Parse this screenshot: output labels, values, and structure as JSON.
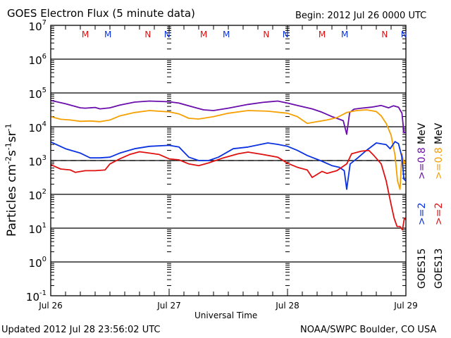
{
  "header": {
    "title": "GOES Electron Flux (5 minute data)",
    "begin": "Begin: 2012 Jul 26 0000 UTC"
  },
  "footer": {
    "updated": "Updated 2012 Jul 28 23:56:02 UTC",
    "credit": "NOAA/SWPC Boulder, CO USA"
  },
  "colors": {
    "goes15_08": "#6a0dad",
    "goes13_08": "#f5a000",
    "goes15_2": "#0a32e0",
    "goes13_2": "#e01010",
    "axis": "#000000"
  },
  "chart_data": {
    "type": "line",
    "title": "GOES Electron Flux (5 minute data)",
    "xlabel": "Universal Time",
    "ylabel": "Particles cm-2 s-1 sr-1",
    "yscale": "log",
    "ylim": [
      0.1,
      10000000
    ],
    "xlim_hours": [
      0,
      72
    ],
    "x_ticks": [
      {
        "hour": 0,
        "label": "Jul 26"
      },
      {
        "hour": 24,
        "label": "Jul 27"
      },
      {
        "hour": 48,
        "label": "Jul 28"
      },
      {
        "hour": 72,
        "label": "Jul 29"
      }
    ],
    "y_ticks": [
      {
        "exp": 7,
        "label": "10",
        "sup": "7"
      },
      {
        "exp": 6,
        "label": "10",
        "sup": "6"
      },
      {
        "exp": 5,
        "label": "10",
        "sup": "5"
      },
      {
        "exp": 4,
        "label": "10",
        "sup": "4"
      },
      {
        "exp": 3,
        "label": "10",
        "sup": "3"
      },
      {
        "exp": 2,
        "label": "10",
        "sup": "2"
      },
      {
        "exp": 1,
        "label": "10",
        "sup": "1"
      },
      {
        "exp": 0,
        "label": "10",
        "sup": "0"
      },
      {
        "exp": -1,
        "label": "10",
        "sup": "-1"
      }
    ],
    "threshold": {
      "value": 1000,
      "style": "dashed"
    },
    "grid": "horizontal decades",
    "markers": [
      {
        "hour": 7.0,
        "label": "M",
        "color": "#e01010"
      },
      {
        "hour": 11.6,
        "label": "M",
        "color": "#0a32e0"
      },
      {
        "hour": 19.7,
        "label": "N",
        "color": "#e01010"
      },
      {
        "hour": 23.6,
        "label": "N",
        "color": "#0a32e0"
      },
      {
        "hour": 31.0,
        "label": "M",
        "color": "#e01010"
      },
      {
        "hour": 35.6,
        "label": "M",
        "color": "#0a32e0"
      },
      {
        "hour": 43.7,
        "label": "N",
        "color": "#e01010"
      },
      {
        "hour": 47.6,
        "label": "N",
        "color": "#0a32e0"
      },
      {
        "hour": 55.0,
        "label": "M",
        "color": "#e01010"
      },
      {
        "hour": 59.6,
        "label": "M",
        "color": "#0a32e0"
      },
      {
        "hour": 67.7,
        "label": "N",
        "color": "#e01010"
      },
      {
        "hour": 71.6,
        "label": "N",
        "color": "#0a32e0"
      }
    ],
    "legend": {
      "placement": "right-vertical",
      "columns": [
        {
          "satellite": "GOES15",
          "entries": [
            {
              "label": ">=2",
              "color": "#0a32e0"
            },
            {
              "label": ">=0.8",
              "color": "#6a0dad"
            },
            {
              "label": "MeV",
              "color": "#000000"
            }
          ]
        },
        {
          "satellite": "GOES13",
          "entries": [
            {
              "label": ">=2",
              "color": "#e01010"
            },
            {
              "label": ">=0.8",
              "color": "#f5a000"
            },
            {
              "label": "MeV",
              "color": "#000000"
            }
          ]
        }
      ]
    },
    "series": [
      {
        "name": "GOES15 >=0.8 MeV",
        "color": "#6a0dad",
        "hours": [
          0,
          3,
          6,
          7,
          9,
          10,
          12,
          14,
          17,
          20,
          24,
          26,
          29,
          31,
          33,
          36,
          40,
          43,
          46,
          48,
          50,
          53,
          55,
          57,
          58,
          59.3,
          60,
          60.6,
          61.5,
          63,
          65,
          67,
          68.5,
          69.5,
          70.5,
          71.2,
          71.6,
          72
        ],
        "log10": [
          4.78,
          4.68,
          4.56,
          4.55,
          4.57,
          4.53,
          4.56,
          4.64,
          4.73,
          4.76,
          4.74,
          4.7,
          4.58,
          4.5,
          4.48,
          4.55,
          4.66,
          4.72,
          4.76,
          4.7,
          4.63,
          4.53,
          4.43,
          4.3,
          4.25,
          4.18,
          3.78,
          4.42,
          4.52,
          4.55,
          4.58,
          4.63,
          4.56,
          4.62,
          4.58,
          4.4,
          3.82,
          3.85
        ]
      },
      {
        "name": "GOES13 >=0.8 MeV",
        "color": "#f5a000",
        "hours": [
          0,
          2,
          4,
          6,
          8,
          10,
          12,
          14,
          17,
          20,
          24,
          26,
          28,
          30,
          33,
          36,
          40,
          44,
          48,
          50,
          52,
          54,
          56,
          58,
          60,
          62,
          64,
          66,
          67,
          68,
          69,
          69.8,
          70.3,
          70.8,
          71.2,
          71.6,
          72
        ],
        "log10": [
          4.3,
          4.22,
          4.2,
          4.16,
          4.17,
          4.15,
          4.2,
          4.32,
          4.42,
          4.48,
          4.44,
          4.38,
          4.25,
          4.23,
          4.3,
          4.4,
          4.48,
          4.46,
          4.4,
          4.3,
          4.1,
          4.15,
          4.2,
          4.27,
          4.42,
          4.48,
          4.5,
          4.45,
          4.32,
          4.1,
          3.75,
          3.15,
          2.4,
          2.15,
          3.2,
          2.9,
          3.0
        ]
      },
      {
        "name": "GOES15 >=2 MeV",
        "color": "#0a32e0",
        "hours": [
          0,
          3,
          6,
          8,
          10,
          12,
          14,
          17,
          20,
          24,
          26,
          28,
          30,
          32,
          34,
          37,
          40,
          44,
          46,
          48,
          50,
          52,
          55,
          57,
          58.5,
          59.5,
          60,
          60.7,
          62,
          64,
          66,
          68,
          68.8,
          69.8,
          70.5,
          71.2,
          71.6,
          72
        ],
        "log10": [
          3.55,
          3.35,
          3.22,
          3.08,
          3.08,
          3.1,
          3.22,
          3.35,
          3.42,
          3.45,
          3.4,
          3.1,
          3.0,
          3.0,
          3.1,
          3.35,
          3.4,
          3.52,
          3.48,
          3.42,
          3.3,
          3.15,
          2.98,
          2.85,
          2.8,
          2.7,
          2.15,
          2.9,
          3.05,
          3.3,
          3.52,
          3.47,
          3.35,
          3.56,
          3.5,
          3.1,
          2.45,
          2.4
        ]
      },
      {
        "name": "GOES13 >=2 MeV",
        "color": "#e01010",
        "hours": [
          0,
          2,
          4,
          5,
          7,
          9,
          11,
          12,
          14,
          16,
          18,
          20,
          22,
          24,
          26,
          28,
          30,
          32,
          35,
          38,
          40,
          43,
          46,
          48,
          50,
          52,
          53,
          55,
          56,
          58,
          60,
          61,
          63,
          64.5,
          65.5,
          67,
          68,
          69,
          69.6,
          70.2,
          70.8,
          71.3,
          71.7,
          72
        ],
        "log10": [
          2.88,
          2.75,
          2.72,
          2.65,
          2.7,
          2.7,
          2.72,
          2.9,
          3.05,
          3.18,
          3.26,
          3.22,
          3.18,
          3.05,
          3.02,
          2.9,
          2.85,
          2.93,
          3.08,
          3.2,
          3.25,
          3.18,
          3.1,
          2.92,
          2.8,
          2.72,
          2.5,
          2.68,
          2.62,
          2.7,
          2.9,
          3.2,
          3.28,
          3.3,
          3.15,
          2.9,
          2.4,
          1.7,
          1.3,
          1.05,
          1.05,
          0.95,
          1.3,
          1.25
        ]
      }
    ]
  }
}
